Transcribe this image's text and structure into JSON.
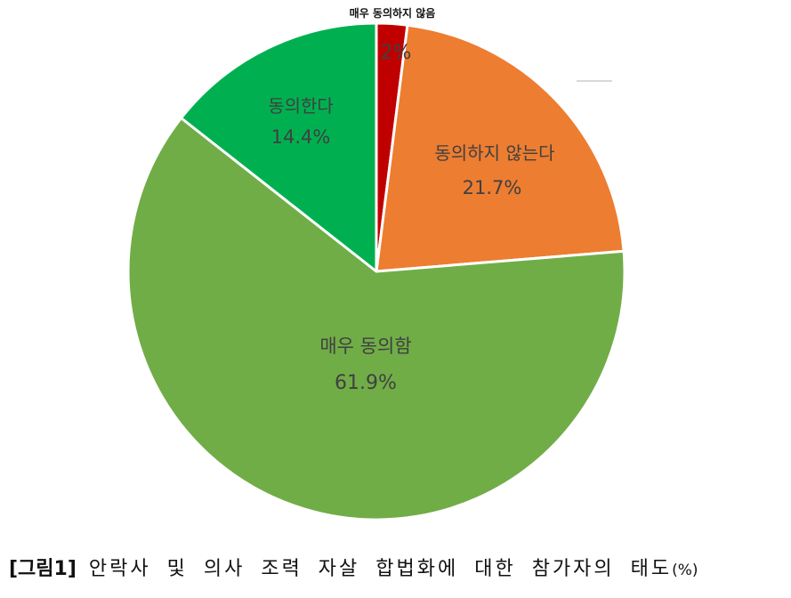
{
  "chart_data": {
    "type": "pie",
    "categories": [
      "매우 동의하지 않음",
      "동의하지 않는다",
      "매우 동의함",
      "동의한다"
    ],
    "values": [
      2,
      21.7,
      61.9,
      14.4
    ],
    "value_labels": [
      "2%",
      "21.7%",
      "61.9%",
      "14.4%"
    ],
    "colors": [
      "#C00000",
      "#ED7D31",
      "#70AD47",
      "#00B050"
    ],
    "start": "top",
    "direction": "clockwise",
    "legend": "none"
  },
  "caption": {
    "label": "[그림1]",
    "text": "안락사 및 의사 조력 자살 합법화에 대한 참가자의 태도",
    "unit": "(%)"
  }
}
